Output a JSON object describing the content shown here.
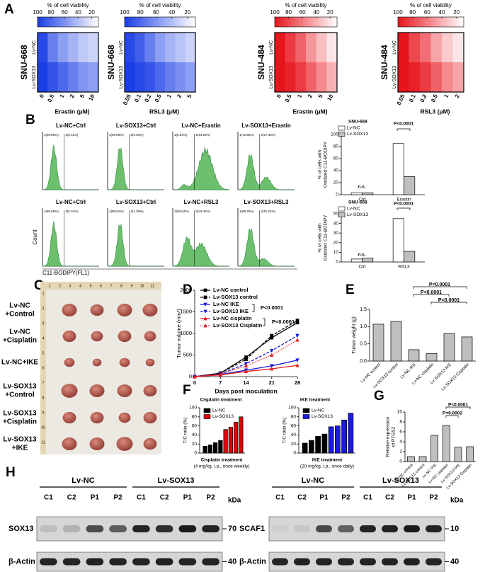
{
  "panel_labels": [
    "A",
    "B",
    "C",
    "D",
    "E",
    "F",
    "G",
    "H"
  ],
  "heatmaps": {
    "colorbar_title": "% of cell viability",
    "clim": [
      100,
      10
    ],
    "cticks": [
      100,
      80,
      60,
      40,
      20
    ],
    "maps": [
      {
        "cell_line": "SNU-668",
        "rows": [
          "Lv-NC",
          "Lv-SOX13"
        ],
        "columns": [
          "0",
          "0.5",
          "1",
          "2",
          "5",
          "10"
        ],
        "x_label": "Erastin (μM)",
        "color": "#1a3ee6",
        "values": [
          [
            95,
            70,
            55,
            45,
            35,
            30
          ],
          [
            100,
            90,
            80,
            70,
            60,
            55
          ]
        ]
      },
      {
        "cell_line": "SNU-668",
        "rows": [
          "Lv-NC",
          "Lv-SOX13"
        ],
        "columns": [
          "0.05",
          "0.1",
          "0.2",
          "0.5",
          "1",
          "2",
          "5"
        ],
        "x_label": "RSL3  (μM)",
        "color": "#1a3ee6",
        "values": [
          [
            95,
            85,
            70,
            55,
            45,
            38,
            30
          ],
          [
            100,
            95,
            90,
            80,
            70,
            62,
            55
          ]
        ]
      },
      {
        "cell_line": "SNU-484",
        "rows": [
          "Lv-NC",
          "Lv-SOX13"
        ],
        "columns": [
          "0",
          "0.5",
          "1",
          "2",
          "5",
          "10"
        ],
        "x_label": "Erastin (μM)",
        "color": "#e8141c",
        "values": [
          [
            100,
            85,
            70,
            50,
            35,
            20
          ],
          [
            100,
            95,
            85,
            70,
            55,
            40
          ]
        ]
      },
      {
        "cell_line": "SNU-484",
        "rows": [
          "Lv-NC",
          "Lv-SOX13"
        ],
        "columns": [
          "0.05",
          "0.1",
          "0.2",
          "0.5",
          "1",
          "2"
        ],
        "x_label": "RSL3 (μM)",
        "color": "#e8141c",
        "values": [
          [
            100,
            80,
            65,
            45,
            30,
            20
          ],
          [
            100,
            95,
            85,
            70,
            55,
            45
          ]
        ]
      }
    ]
  },
  "flow": {
    "y_label": "Count",
    "x_label": "C11-BODIPY(FL1)",
    "plots": [
      {
        "title": "Lv-NC+Ctrl",
        "gates": [
          "1(99.89%)",
          "2(0.11%)"
        ]
      },
      {
        "title": "Lv-SOX13+Ctrl",
        "gates": [
          "1(99.09%)",
          "2(0.91%)"
        ]
      },
      {
        "title": "Lv-NC+Erastin",
        "gates": [
          "1(5.34%)",
          "2(94.66%)"
        ]
      },
      {
        "title": "Lv-SOX13+Erastin",
        "gates": [
          "1(72.55%)",
          "2(27.45%)"
        ]
      },
      {
        "title": "Lv-NC+Ctrl",
        "gates": [
          "1(99.69%)",
          "2(0.31%)"
        ]
      },
      {
        "title": "Lv-SOX13+Ctrl",
        "gates": [
          "1(98.61%)",
          "2(1.39%)"
        ]
      },
      {
        "title": "Lv-NC+RSL3",
        "gates": [
          "1(56.54%)",
          "2(43.46%)"
        ]
      },
      {
        "title": "Lv-SOX13+RSL3",
        "gates": [
          "1(89.76%)",
          "2(10.24%)"
        ]
      }
    ]
  },
  "photo": {
    "ruler": [
      1,
      2,
      3,
      4,
      5,
      6,
      7,
      8,
      9,
      10,
      11
    ],
    "rows": [
      [
        "Lv-NC",
        "+Control"
      ],
      [
        "Lv-NC",
        "+Cisplatin"
      ],
      [
        "Lv-NC+IKE"
      ],
      [
        "Lv-SOX13",
        "+Control"
      ],
      [
        "Lv-SOX13",
        "+Cisplatin"
      ],
      [
        "Lv-SOX13",
        "+IKE"
      ]
    ]
  },
  "chart_data": [
    {
      "type": "bar",
      "title": "SNU-668",
      "y_label": [
        "% of cells with",
        "Oxidized C11-BODIPY"
      ],
      "categories": [
        "Ctrl",
        "Erastin"
      ],
      "series": [
        {
          "name": "Lv-NC",
          "color": "#ffffff",
          "values": [
            3,
            85
          ]
        },
        {
          "name": "Lv-SOX13",
          "color": "#bfbfbf",
          "values": [
            3,
            30
          ]
        }
      ],
      "ylim": [
        0,
        100
      ],
      "yticks": [
        0,
        20,
        40,
        60,
        80,
        100
      ],
      "annotations": [
        "n.s.",
        "P<0.0001"
      ],
      "legend": "upper left"
    },
    {
      "type": "bar",
      "title": "SNU-668",
      "y_label": [
        "% of cells with",
        "Oxidized C11-BODIPY"
      ],
      "categories": [
        "Ctrl",
        "RSL3"
      ],
      "series": [
        {
          "name": "Lv-NC",
          "color": "#ffffff",
          "values": [
            3,
            45
          ]
        },
        {
          "name": "Lv-SOX13",
          "color": "#bfbfbf",
          "values": [
            4,
            11
          ]
        }
      ],
      "ylim": [
        0,
        50
      ],
      "yticks": [
        0,
        10,
        20,
        30,
        40,
        50
      ],
      "annotations": [
        "n.s.",
        "P<0.0001"
      ],
      "legend": "upper left"
    },
    {
      "type": "line",
      "y_label": [
        "Tumor volume (mm³)"
      ],
      "x_label": "Days post inoculation",
      "x": [
        0,
        7,
        14,
        21,
        28
      ],
      "xlim": [
        0,
        28
      ],
      "xticks": [
        0,
        7,
        14,
        21,
        28
      ],
      "ylim": [
        0,
        2000
      ],
      "yticks": [
        0,
        500,
        1000,
        1500,
        2000
      ],
      "legend": "upper left",
      "series": [
        {
          "name": "Lv-NC control",
          "color": "#000000",
          "line_style": "solid",
          "marker": "square",
          "values": [
            0,
            80,
            450,
            900,
            1250
          ]
        },
        {
          "name": "Lv-SOX13 control",
          "color": "#000000",
          "line_style": "dashed",
          "marker": "square",
          "values": [
            0,
            80,
            400,
            950,
            1300
          ]
        },
        {
          "name": "Lv-NC IKE",
          "color": "#1a1adc",
          "line_style": "solid",
          "marker": "triangle-down",
          "values": [
            0,
            50,
            150,
            250,
            380
          ]
        },
        {
          "name": "Lv-SOX13 IKE",
          "color": "#1a1adc",
          "line_style": "dashed",
          "marker": "triangle-down",
          "values": [
            0,
            60,
            300,
            600,
            950
          ]
        },
        {
          "name": "Lv-NC cisplatin",
          "color": "#e31a1c",
          "line_style": "solid",
          "marker": "triangle-up",
          "values": [
            0,
            40,
            120,
            180,
            260
          ]
        },
        {
          "name": "Lv-SOX13 Cisplatin",
          "color": "#e31a1c",
          "line_style": "dotted",
          "marker": "triangle-up",
          "values": [
            0,
            60,
            250,
            500,
            850
          ]
        }
      ],
      "annotations": [
        "P<0.0001",
        "P<0.0001"
      ]
    },
    {
      "type": "bar",
      "y_label": [
        "Tumor weight (g)"
      ],
      "categories": [
        "Lv-NC control",
        "Lv-SOX13 control",
        "Lv-NC IKE",
        "Lv-NC cisplatin",
        "Lv-SOX13 IKE",
        "Lv-SOX13 Cisplatin"
      ],
      "values": [
        1.07,
        1.15,
        0.33,
        0.22,
        0.8,
        0.7
      ],
      "color": "#bfbfbf",
      "ylim": [
        0,
        1.5
      ],
      "yticks": [
        {
          "value": 0,
          "label": "0.0"
        },
        0.5,
        {
          "value": 1,
          "label": "1.0"
        },
        1.5
      ],
      "annotations": [
        "P<0.0001",
        "P<0.0001",
        "P<0.0001"
      ]
    },
    {
      "type": "bar",
      "title": "Cisplatin treatment",
      "y_label": [
        "T/C ratio (%)"
      ],
      "x_label": [
        "Cisplatin treatment",
        "(4 mg/kg, i.p., once weekly)"
      ],
      "categories": [
        null,
        null,
        null,
        null
      ],
      "series": [
        {
          "name": "Lv-NC",
          "color": "#000000",
          "values": [
            15,
            18,
            23,
            28
          ]
        },
        {
          "name": "Lv-SOX13",
          "color": "#e00000",
          "values": [
            52,
            57,
            68,
            80
          ]
        }
      ],
      "ylim": [
        0,
        100
      ],
      "yticks": [
        0,
        20,
        40,
        60,
        80,
        100
      ],
      "legend": "upper left"
    },
    {
      "type": "bar",
      "title": "IKE treatment",
      "y_label": [
        "T/C ratio (%)"
      ],
      "x_label": [
        "IKE treatment",
        "(20 mg/kg, i.p., once daily)"
      ],
      "categories": [
        null,
        null,
        null,
        null
      ],
      "series": [
        {
          "name": "Lv-NC",
          "color": "#000000",
          "values": [
            22,
            28,
            37,
            42
          ]
        },
        {
          "name": "Lv-SOX13",
          "color": "#1a1ae0",
          "values": [
            58,
            60,
            73,
            88
          ]
        }
      ],
      "ylim": [
        0,
        100
      ],
      "yticks": [
        0,
        20,
        40,
        60,
        80,
        100
      ],
      "legend": "upper left"
    },
    {
      "type": "bar",
      "y_label": [
        "Relative expression",
        "of PTGS2"
      ],
      "categories": [
        "Lv-NC control",
        "Lv-SOX13 control",
        "Lv-NC IKE",
        "Lv-NC cisplatin",
        "Lv-SOX13 IKE",
        "Lv-SOX13 Cisplatin"
      ],
      "values": [
        1,
        1,
        5.3,
        7.3,
        2.9,
        3.0
      ],
      "color": "#bfbfbf",
      "ylim": [
        0,
        10
      ],
      "yticks": [
        0,
        2,
        4,
        6,
        8,
        10
      ],
      "annotations": [
        "P<0.0001",
        "P=0.0002"
      ]
    }
  ],
  "blots": [
    {
      "groups": [
        "Lv-NC",
        "Lv-SOX13"
      ],
      "lanes": [
        "C1",
        "C2",
        "P1",
        "P2",
        "C1",
        "C2",
        "P1",
        "P2"
      ],
      "unit": "kDa",
      "rows": [
        {
          "protein": "SOX13",
          "marker": 70
        },
        {
          "protein": "β-Actin",
          "marker": 40
        }
      ]
    },
    {
      "groups": [
        "Lv-NC",
        "Lv-SOX13"
      ],
      "lanes": [
        "C1",
        "C2",
        "P1",
        "P2",
        "C1",
        "C2",
        "P1",
        "P2"
      ],
      "unit": "kDa",
      "rows": [
        {
          "protein": "SCAF1",
          "marker": 10
        },
        {
          "protein": "β-Actin",
          "marker": 40
        }
      ]
    }
  ]
}
